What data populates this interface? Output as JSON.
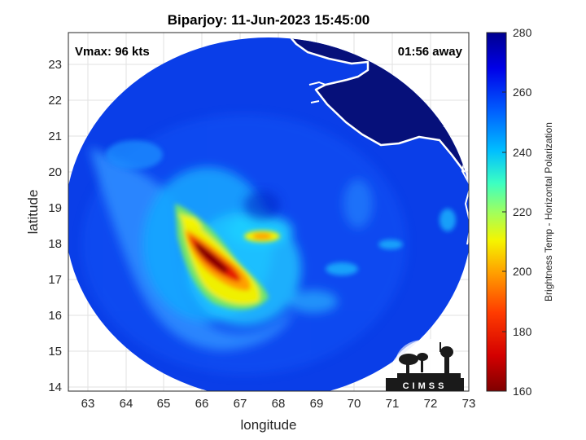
{
  "title": "Biparjoy: 11-Jun-2023 15:45:00",
  "vmax_label": "Vmax: 96 kts",
  "time_away_label": "01:56 away",
  "xlabel": "longitude",
  "ylabel": "latitude",
  "colorbar_label": "Brightness Temp - Horizontal Polarization",
  "logo_text": "CIMSS",
  "map": {
    "lon_range": [
      62.5,
      73
    ],
    "lat_range": [
      13.8,
      23.8
    ],
    "x_ticks": [
      "63",
      "64",
      "65",
      "66",
      "67",
      "68",
      "69",
      "70",
      "71",
      "72",
      "73"
    ],
    "y_ticks": [
      "14",
      "15",
      "16",
      "17",
      "18",
      "19",
      "20",
      "21",
      "22",
      "23"
    ],
    "grid": true
  },
  "colorbar": {
    "range": [
      160,
      280
    ],
    "ticks": [
      "160",
      "180",
      "200",
      "220",
      "240",
      "260",
      "280"
    ],
    "colormap": [
      "#7f0000",
      "#d40000",
      "#ff3c00",
      "#ff9f00",
      "#f5f500",
      "#9fff5f",
      "#3cffc2",
      "#00bfff",
      "#0060ff",
      "#0000e8",
      "#00008f"
    ]
  },
  "colors": {
    "background_disc": "#0a3ee8",
    "land": "#06107a",
    "coastline": "#ffffff",
    "grid": "#e2e2e2"
  }
}
